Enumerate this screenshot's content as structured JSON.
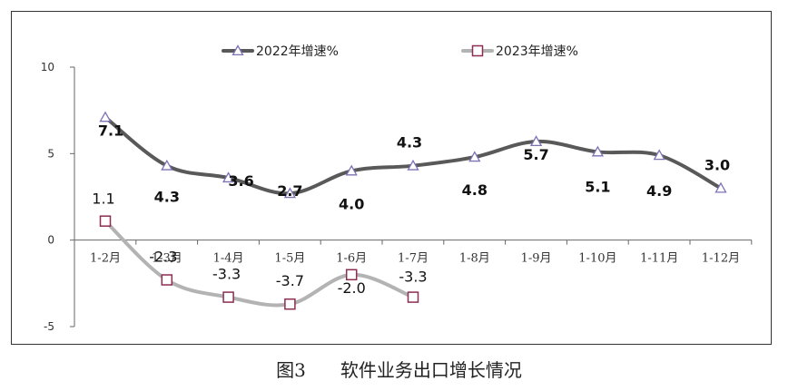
{
  "chart_data": {
    "type": "line",
    "title": "",
    "xlabel": "",
    "ylabel": "",
    "ylim": [
      -5,
      10
    ],
    "yticks": [
      -5,
      0,
      5,
      10
    ],
    "grid": false,
    "legend": "top",
    "categories": [
      "1-2月",
      "1-3月",
      "1-4月",
      "1-5月",
      "1-6月",
      "1-7月",
      "1-8月",
      "1-9月",
      "1-10月",
      "1-11月",
      "1-12月"
    ],
    "series": [
      {
        "name": "2022年增速%",
        "values": [
          7.1,
          4.3,
          3.6,
          2.7,
          4.0,
          4.3,
          4.8,
          5.7,
          5.1,
          4.9,
          3.0
        ],
        "labels": [
          "7.1",
          "4.3",
          "3.6",
          "2.7",
          "4.0",
          "4.3",
          "4.8",
          "5.7",
          "5.1",
          "4.9",
          "3.0"
        ],
        "color": "#595959",
        "marker": "triangle",
        "marker_color": "#7e72b5"
      },
      {
        "name": "2023年增速%",
        "values": [
          1.1,
          -2.3,
          -3.3,
          -3.7,
          -2.0,
          -3.3,
          null,
          null,
          null,
          null,
          null
        ],
        "labels": [
          "1.1",
          "-2.3",
          "-3.3",
          "-3.7",
          "-2.0",
          "-3.3",
          null,
          null,
          null,
          null,
          null
        ],
        "color": "#b3b3b3",
        "marker": "square",
        "marker_color": "#8b2e52"
      }
    ]
  },
  "caption": {
    "number": "图3",
    "text": "软件业务出口增长情况"
  }
}
